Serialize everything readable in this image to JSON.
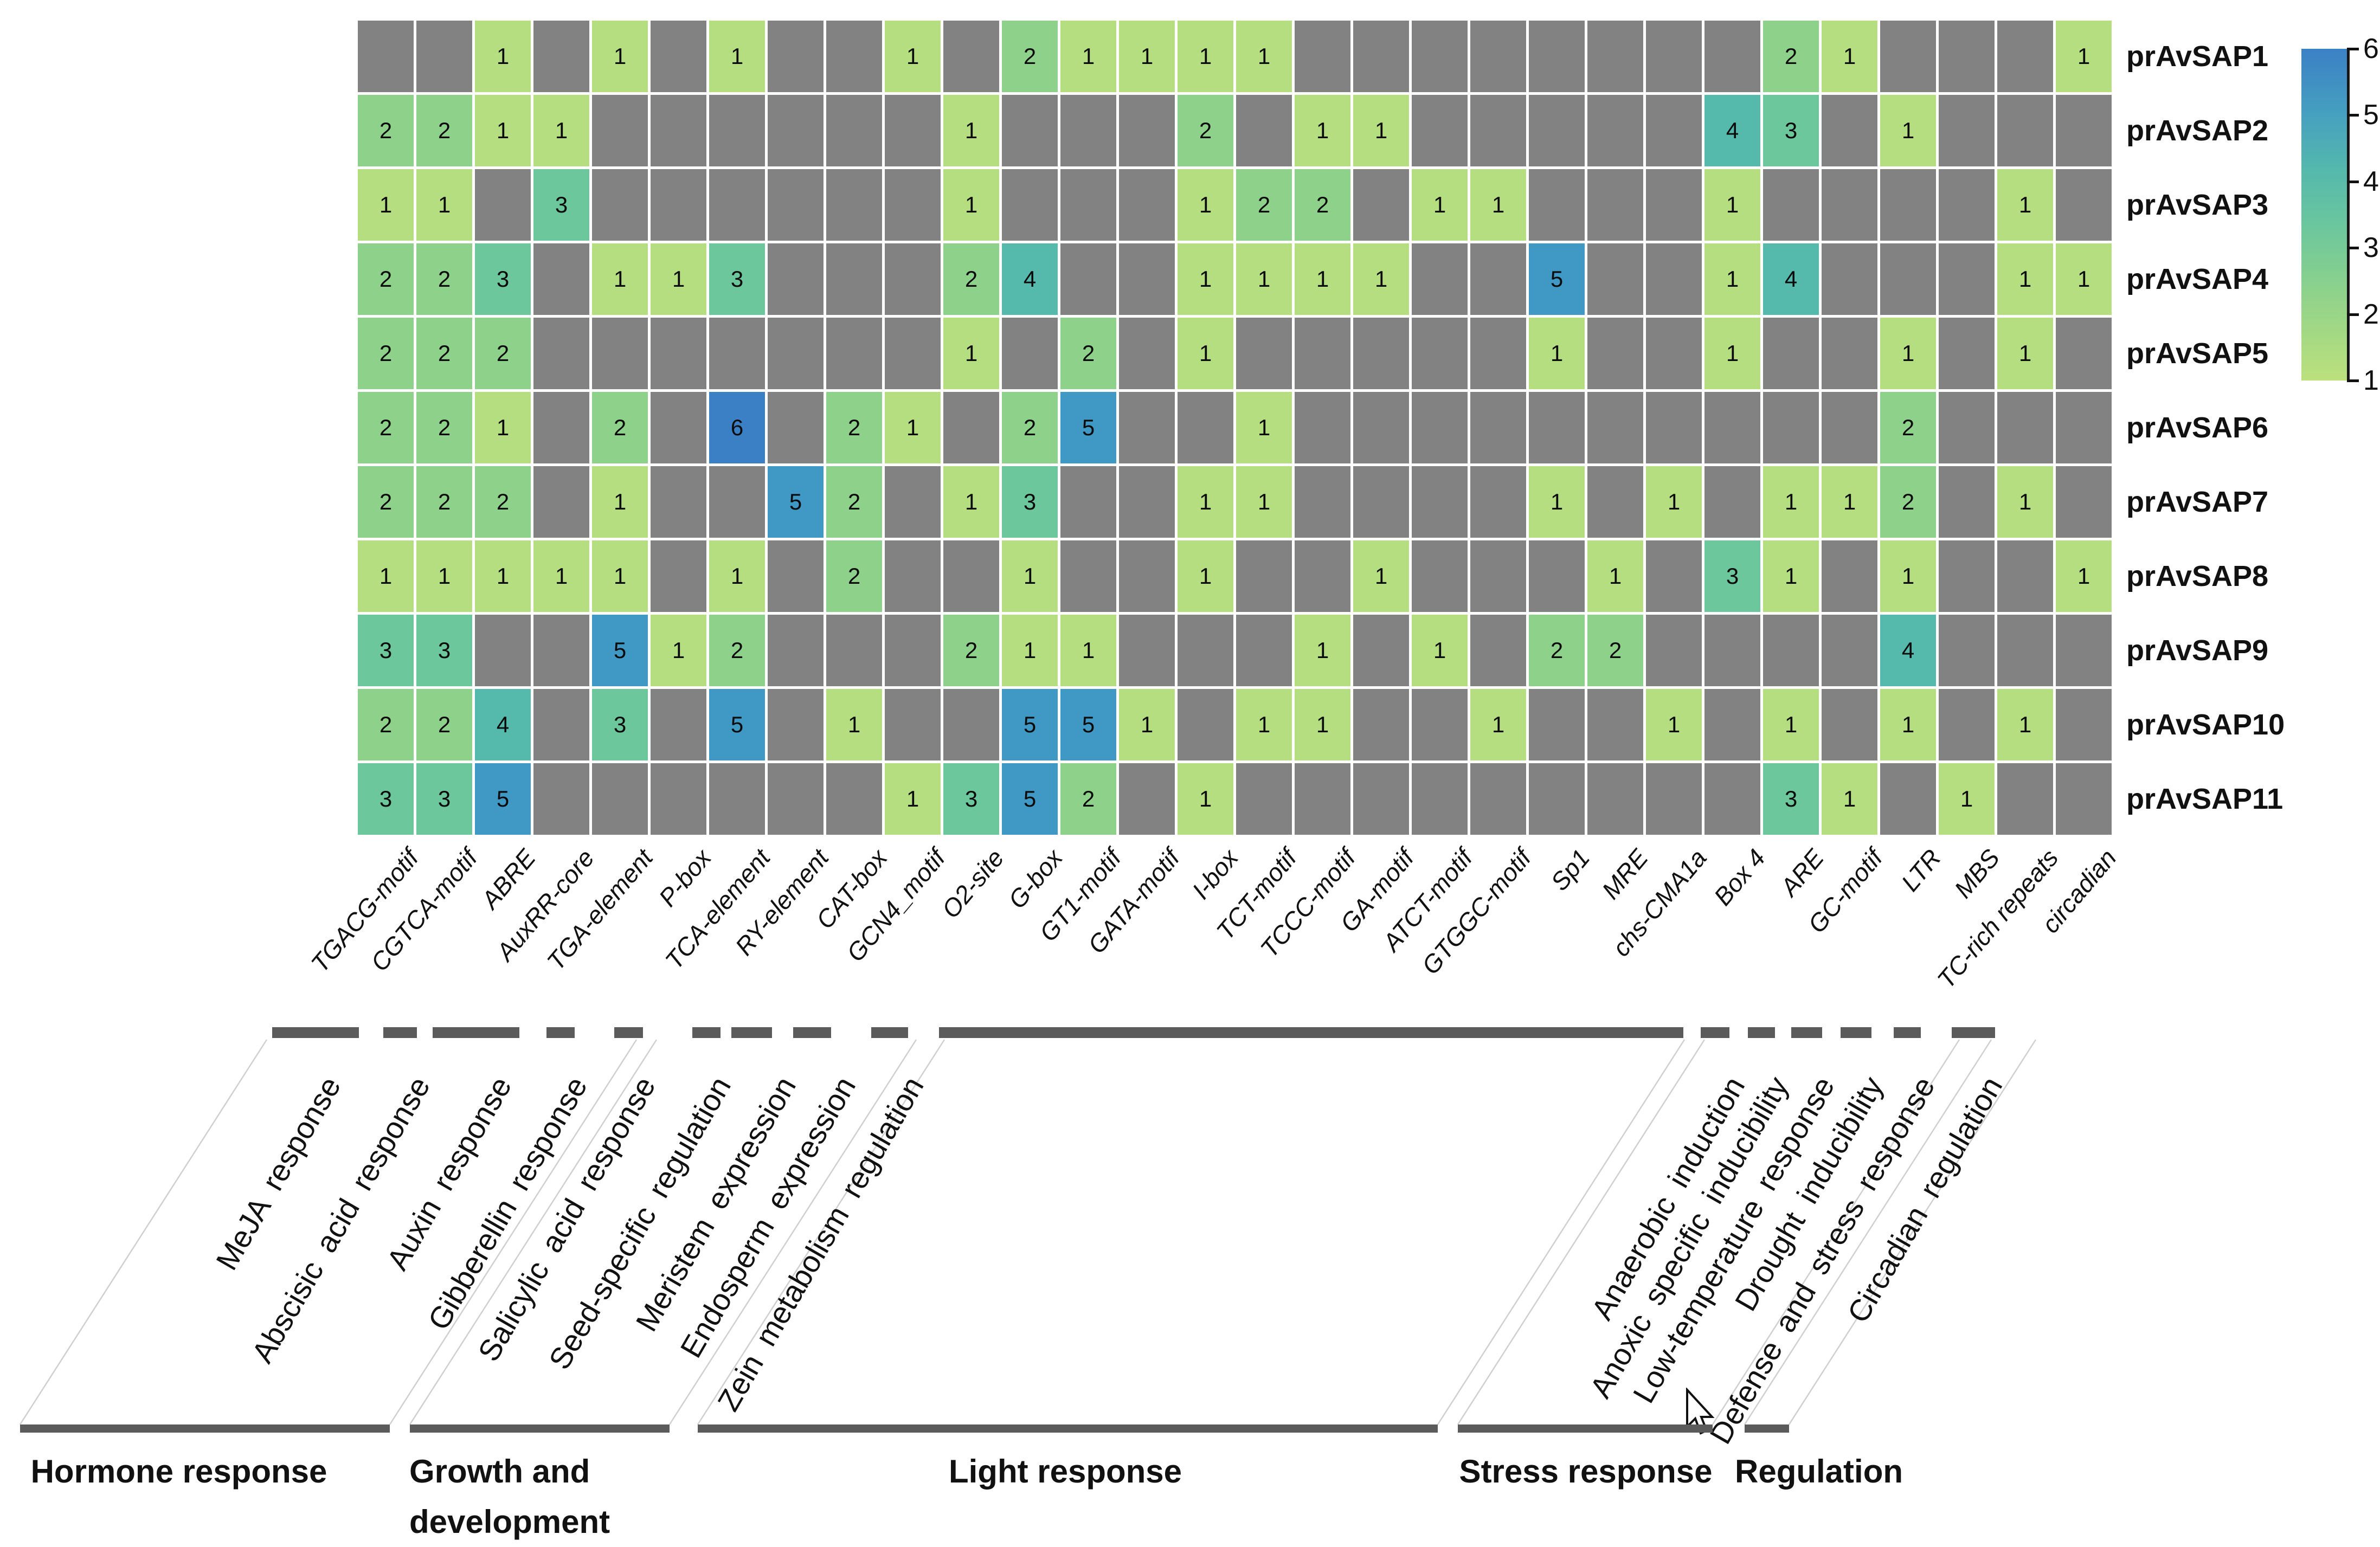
{
  "chart_data": {
    "type": "heatmap",
    "title": "",
    "rows": [
      "prAvSAP1",
      "prAvSAP2",
      "prAvSAP3",
      "prAvSAP4",
      "prAvSAP5",
      "prAvSAP6",
      "prAvSAP7",
      "prAvSAP8",
      "prAvSAP9",
      "prAvSAP10",
      "prAvSAP11"
    ],
    "columns": [
      "TGACG-motif",
      "CGTCA-motif",
      "ABRE",
      "AuxRR-core",
      "TGA-element",
      "P-box",
      "TCA-element",
      "RY-element",
      "CAT-box",
      "GCN4_motif",
      "O2-site",
      "G-box",
      "GT1-motif",
      "GATA-motif",
      "I-box",
      "TCT-motif",
      "TCCC-motif",
      "GA-motif",
      "ATCT-motif",
      "GTGGC-motif",
      "Sp1",
      "MRE",
      "chs-CMA1a",
      "Box 4",
      "ARE",
      "GC-motif",
      "LTR",
      "MBS",
      "TC-rich repeats",
      "circadian"
    ],
    "values": [
      [
        null,
        null,
        1,
        null,
        1,
        null,
        1,
        null,
        null,
        1,
        null,
        2,
        1,
        1,
        1,
        1,
        null,
        null,
        null,
        null,
        null,
        null,
        null,
        null,
        2,
        1,
        null,
        null,
        null,
        1
      ],
      [
        2,
        2,
        1,
        1,
        null,
        null,
        null,
        null,
        null,
        null,
        1,
        null,
        null,
        null,
        2,
        null,
        1,
        1,
        null,
        null,
        null,
        null,
        null,
        4,
        3,
        null,
        1,
        null,
        null,
        null
      ],
      [
        1,
        1,
        null,
        3,
        null,
        null,
        null,
        null,
        null,
        null,
        1,
        null,
        null,
        null,
        1,
        2,
        2,
        null,
        1,
        1,
        null,
        null,
        null,
        1,
        null,
        null,
        null,
        null,
        1,
        null
      ],
      [
        2,
        2,
        3,
        null,
        1,
        1,
        3,
        null,
        null,
        null,
        2,
        4,
        null,
        null,
        1,
        1,
        1,
        1,
        null,
        null,
        5,
        null,
        null,
        1,
        4,
        null,
        null,
        null,
        1,
        1
      ],
      [
        2,
        2,
        2,
        null,
        null,
        null,
        null,
        null,
        null,
        null,
        1,
        null,
        2,
        null,
        1,
        null,
        null,
        null,
        null,
        null,
        1,
        null,
        null,
        1,
        null,
        null,
        1,
        null,
        1,
        null
      ],
      [
        2,
        2,
        1,
        null,
        2,
        null,
        6,
        null,
        2,
        1,
        null,
        2,
        5,
        null,
        null,
        1,
        null,
        null,
        null,
        null,
        null,
        null,
        null,
        null,
        null,
        null,
        2,
        null,
        null,
        null
      ],
      [
        2,
        2,
        2,
        null,
        1,
        null,
        null,
        5,
        2,
        null,
        1,
        3,
        null,
        null,
        1,
        1,
        null,
        null,
        null,
        null,
        1,
        null,
        1,
        null,
        1,
        1,
        2,
        null,
        1,
        null
      ],
      [
        1,
        1,
        1,
        1,
        1,
        null,
        1,
        null,
        2,
        null,
        null,
        1,
        null,
        null,
        1,
        null,
        null,
        1,
        null,
        null,
        null,
        1,
        null,
        3,
        1,
        null,
        1,
        null,
        null,
        1
      ],
      [
        3,
        3,
        null,
        null,
        5,
        1,
        2,
        null,
        null,
        null,
        2,
        1,
        1,
        null,
        null,
        null,
        1,
        null,
        1,
        null,
        2,
        2,
        null,
        null,
        null,
        null,
        4,
        null,
        null,
        null
      ],
      [
        2,
        2,
        4,
        null,
        3,
        null,
        5,
        null,
        1,
        null,
        null,
        5,
        5,
        1,
        null,
        1,
        1,
        null,
        null,
        1,
        null,
        null,
        1,
        null,
        1,
        null,
        1,
        null,
        1,
        null
      ],
      [
        3,
        3,
        5,
        null,
        null,
        null,
        null,
        null,
        null,
        1,
        3,
        5,
        2,
        null,
        1,
        null,
        null,
        null,
        null,
        null,
        null,
        null,
        null,
        null,
        3,
        1,
        null,
        1,
        null,
        null
      ]
    ],
    "colormap": {
      "1": "#b4de80",
      "2": "#8ed18a",
      "3": "#6cc79d",
      "4": "#55b9ac",
      "5": "#4099c4",
      "6": "#3b80c5"
    },
    "empty_color": "#828282",
    "grid": "white gaps between cells",
    "legend": {
      "min": 1,
      "max": 6,
      "ticks": [
        6,
        5,
        4,
        3,
        2,
        1
      ],
      "position": "top-right",
      "gradient_top": "#3b80c5",
      "gradient_middle": "#6cc79d",
      "gradient_bottom": "#bce17c"
    },
    "function_annotations": [
      "MeJA response",
      "Abscisic acid response",
      "Auxin response",
      "Gibberellin response",
      "Salicylic acid response",
      "Seed-specific regulation",
      "Meristem expression",
      "Endosperm expression",
      "Zein metabolism regulation",
      "Anaerobic induction",
      "Anoxic specific inducibility",
      "Low-temperature response",
      "Drought inducibility",
      "Defense and stress response",
      "Circadian regulation"
    ],
    "category_groups": [
      "Hormone response",
      "Growth and development",
      "Light response",
      "Stress response",
      "Regulation"
    ]
  }
}
